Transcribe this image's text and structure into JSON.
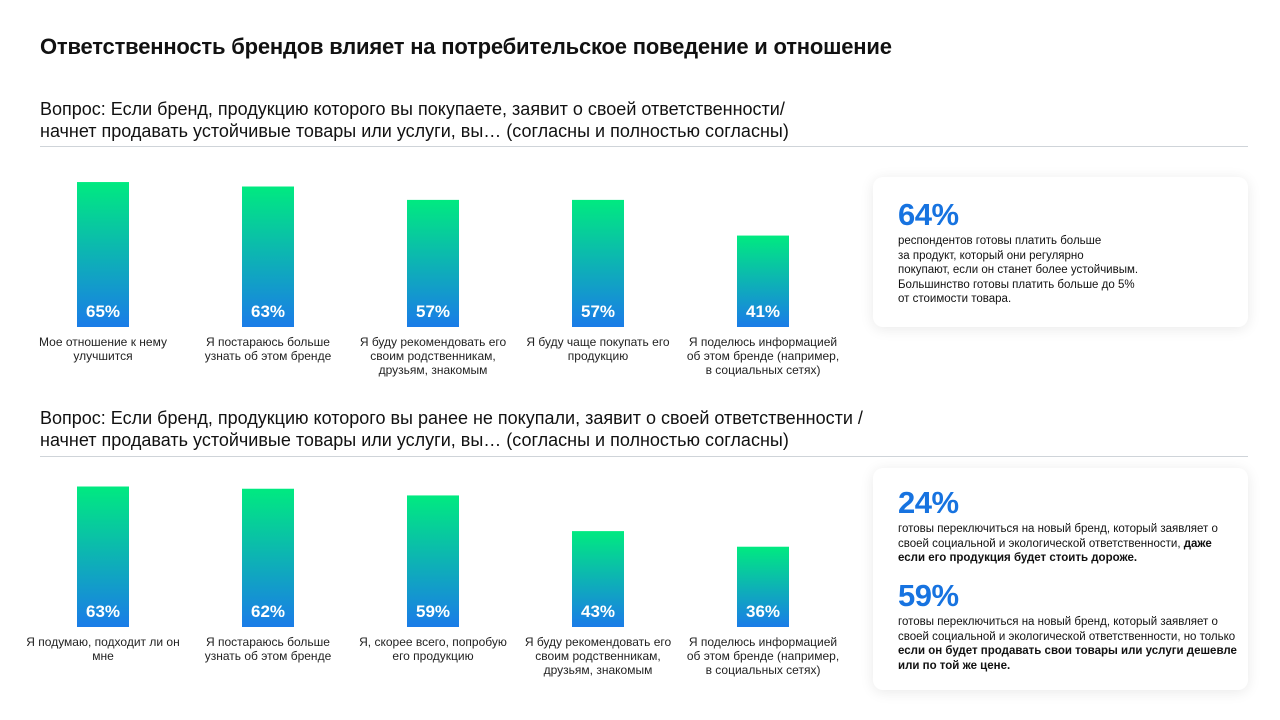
{
  "title": "Ответственность брендов влияет на потребительское поведение и отношение",
  "section1": {
    "question_lines": [
      "Вопрос: Если бренд, продукцию которого вы покупаете, заявит о своей ответственности/",
      "начнет продавать устойчивые товары или услуги, вы… (согласны и полностью согласны)"
    ],
    "callout": {
      "stat": "64%",
      "text_lines": [
        "респондентов готовы платить больше",
        "за продукт, который они регулярно",
        "покупают, если он станет более устойчивым.",
        "Большинство готовы платить больше до 5%",
        "от стоимости товара."
      ]
    }
  },
  "section2": {
    "question_lines": [
      "Вопрос: Если бренд, продукцию которого вы ранее не покупали, заявит о своей ответственности /",
      "начнет продавать устойчивые товары или услуги, вы… (согласны и полностью согласны)"
    ],
    "callouts": [
      {
        "stat": "24%",
        "text_normal": "готовы переключиться на новый бренд, который заявляет о своей социальной и экологической ответственности,",
        "text_bold": "даже если его продукция будет стоить дороже."
      },
      {
        "stat": "59%",
        "text_normal": "готовы переключиться на новый бренд, который заявляет о своей социальной и экологической ответственности, но только",
        "text_bold": "если он будет продавать свои товары или услуги дешевле или по той же цене."
      }
    ]
  },
  "colors": {
    "bar_top": "#00ea80",
    "bar_bottom": "#1a7ce8",
    "accent": "#1773e0",
    "rule": "#cfd4d9"
  },
  "chart_data": [
    {
      "type": "bar",
      "categories": [
        [
          "Мое отношение к нему",
          "улучшится"
        ],
        [
          "Я постараюсь больше",
          "узнать об этом бренде"
        ],
        [
          "Я буду рекомендовать его",
          "своим родственникам,",
          "друзьям, знакомым"
        ],
        [
          "Я буду чаще покупать его",
          "продукцию"
        ],
        [
          "Я поделюсь информацией",
          "об этом бренде (например,",
          "в социальных сетях)"
        ]
      ],
      "values": [
        65,
        63,
        57,
        57,
        41
      ],
      "value_labels": [
        "65%",
        "63%",
        "57%",
        "57%",
        "41%"
      ],
      "unit": "%"
    },
    {
      "type": "bar",
      "categories": [
        [
          "Я подумаю, подходит ли он",
          "мне"
        ],
        [
          "Я постараюсь больше",
          "узнать об этом бренде"
        ],
        [
          "Я, скорее всего, попробую",
          "его продукцию"
        ],
        [
          "Я буду рекомендовать его",
          "своим родственникам,",
          "друзьям, знакомым"
        ],
        [
          "Я поделюсь информацией",
          "об этом бренде (например,",
          "в социальных сетях)"
        ]
      ],
      "values": [
        63,
        62,
        59,
        43,
        36
      ],
      "value_labels": [
        "63%",
        "62%",
        "59%",
        "43%",
        "36%"
      ],
      "unit": "%"
    }
  ]
}
